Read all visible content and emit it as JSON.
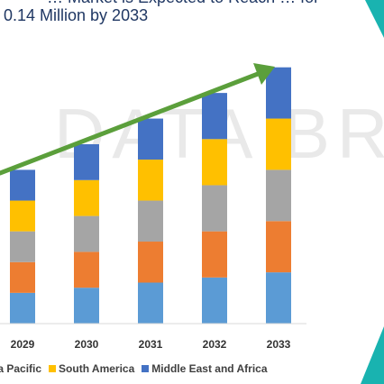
{
  "title": {
    "line_top_fragment": "… Market is Expected to Reach … for",
    "line_main": "0.14 Million by 2033"
  },
  "watermark": "DATA BRIDGE",
  "colors": {
    "title": "#1f3763",
    "arrow": "#5b9f3b",
    "decor": "#19b3b0"
  },
  "chart_data": {
    "type": "bar",
    "stacked": true,
    "categories": [
      "2029",
      "2030",
      "2031",
      "2032",
      "2033"
    ],
    "series": [
      {
        "name": "",
        "color": "#5b9bd5",
        "values": [
          30,
          35,
          40,
          45,
          50
        ]
      },
      {
        "name": "",
        "color": "#ed7d31",
        "values": [
          30,
          35,
          40,
          45,
          50
        ]
      },
      {
        "name": "Asia Pacific",
        "color": "#a5a5a5",
        "values": [
          30,
          35,
          40,
          45,
          50
        ]
      },
      {
        "name": "South America",
        "color": "#ffc000",
        "values": [
          30,
          35,
          40,
          45,
          50
        ]
      },
      {
        "name": "Middle East and Africa",
        "color": "#4472c4",
        "values": [
          30,
          35,
          40,
          45,
          50
        ]
      }
    ],
    "ylim": [
      0,
      255
    ],
    "legend_position": "bottom",
    "legend": [
      {
        "label": "ia Pacific",
        "color": "#a5a5a5",
        "swatch": false
      },
      {
        "label": "South America",
        "color": "#ffc000",
        "swatch": true
      },
      {
        "label": "Middle East and Africa",
        "color": "#4472c4",
        "swatch": true
      }
    ],
    "xlabel": "",
    "ylabel": ""
  }
}
